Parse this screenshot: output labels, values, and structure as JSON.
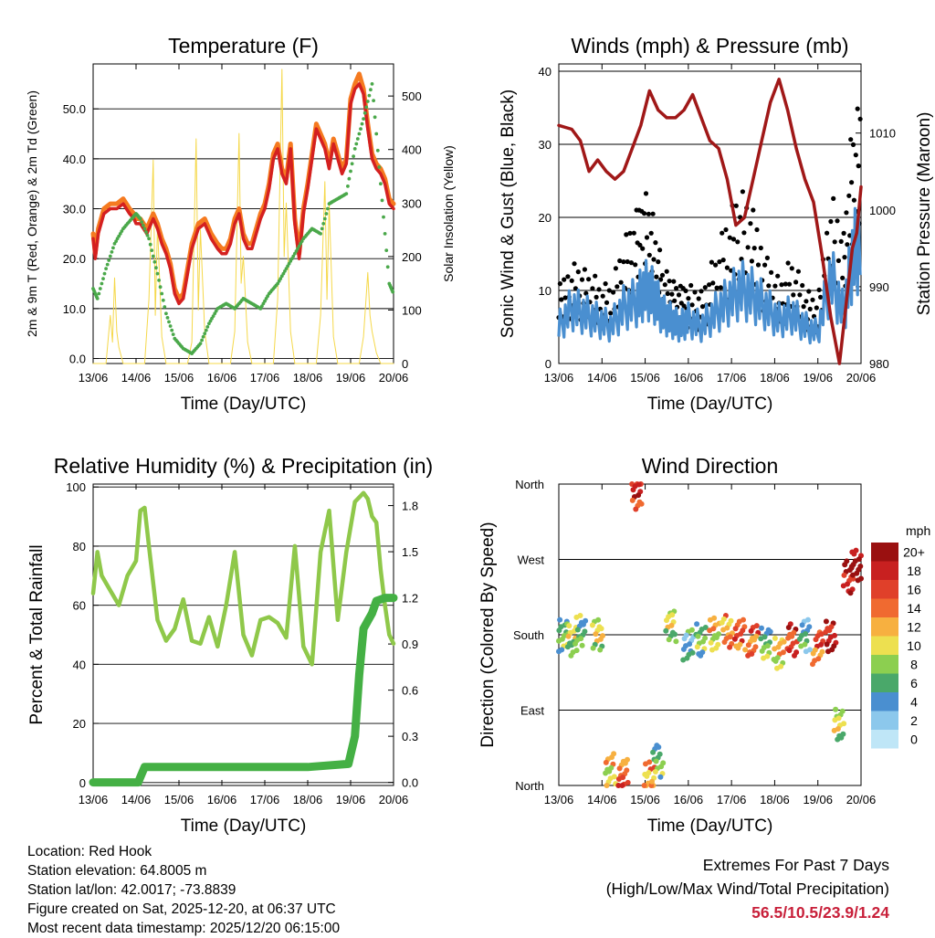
{
  "x_ticks": [
    "13/06",
    "14/06",
    "15/06",
    "16/06",
    "17/06",
    "18/06",
    "19/06",
    "20/06"
  ],
  "colors": {
    "red": "#d42020",
    "orange": "#f57a20",
    "green": "#4aa84a",
    "yellow": "#f5d84a",
    "blue": "#4a8fd0",
    "black": "#000000",
    "maroon": "#a01818",
    "rh": "#8fc84a",
    "rain": "#44b044",
    "grid": "#000000"
  },
  "chart_data": [
    {
      "id": "temperature",
      "type": "line",
      "title": "Temperature (F)",
      "xlabel": "Time (Day/UTC)",
      "ylabel": "2m & 9m T (Red, Orange) & 2m Td (Green)",
      "y2label": "Solar Insolation (Yellow)",
      "ylim": [
        -1,
        59
      ],
      "yticks": [
        "0.0",
        "10.0",
        "20.0",
        "30.0",
        "40.0",
        "50.0"
      ],
      "y2lim": [
        0,
        560
      ],
      "y2ticks": [
        "0",
        "100",
        "200",
        "300",
        "400",
        "500"
      ],
      "series": [
        {
          "name": "2m T",
          "color": "red",
          "x": [
            0,
            0.05,
            0.12,
            0.25,
            0.4,
            0.55,
            0.7,
            0.85,
            0.95,
            1.0,
            1.1,
            1.25,
            1.4,
            1.5,
            1.6,
            1.7,
            1.8,
            1.9,
            2.0,
            2.1,
            2.2,
            2.3,
            2.45,
            2.6,
            2.75,
            2.9,
            3.0,
            3.1,
            3.2,
            3.3,
            3.4,
            3.5,
            3.6,
            3.7,
            3.8,
            3.9,
            4.0,
            4.1,
            4.2,
            4.3,
            4.4,
            4.5,
            4.6,
            4.7,
            4.8,
            4.9,
            5.0,
            5.1,
            5.2,
            5.3,
            5.4,
            5.5,
            5.6,
            5.7,
            5.8,
            5.9,
            6.0,
            6.1,
            6.2,
            6.3,
            6.4,
            6.5,
            6.6,
            6.7,
            6.8,
            6.9,
            7.0
          ],
          "y": [
            24,
            20,
            25,
            29,
            30,
            30,
            31,
            29,
            28,
            27,
            27,
            25,
            28,
            26,
            23,
            21,
            18,
            13,
            11,
            12,
            17,
            22,
            26,
            27,
            24,
            22,
            21,
            21,
            23,
            27,
            29,
            24,
            22,
            22,
            25,
            28,
            30,
            34,
            40,
            42,
            37,
            35,
            42,
            27,
            20,
            29,
            34,
            40,
            46,
            44,
            42,
            38,
            43,
            40,
            37,
            39,
            51,
            54,
            55,
            53,
            46,
            40,
            38,
            37,
            35,
            31,
            30
          ]
        },
        {
          "name": "9m T",
          "color": "orange",
          "x": [
            0,
            0.05,
            0.12,
            0.25,
            0.4,
            0.55,
            0.7,
            0.85,
            0.95,
            1.0,
            1.1,
            1.25,
            1.4,
            1.5,
            1.6,
            1.7,
            1.8,
            1.9,
            2.0,
            2.1,
            2.2,
            2.3,
            2.45,
            2.6,
            2.75,
            2.9,
            3.0,
            3.1,
            3.2,
            3.3,
            3.4,
            3.5,
            3.6,
            3.7,
            3.8,
            3.9,
            4.0,
            4.1,
            4.2,
            4.3,
            4.4,
            4.5,
            4.6,
            4.7,
            4.8,
            4.9,
            5.0,
            5.1,
            5.2,
            5.3,
            5.4,
            5.5,
            5.6,
            5.7,
            5.8,
            5.9,
            6.0,
            6.1,
            6.2,
            6.3,
            6.4,
            6.5,
            6.6,
            6.7,
            6.8,
            6.9,
            7.0
          ],
          "y": [
            25,
            21,
            26,
            30,
            31,
            31,
            32,
            30,
            29,
            28,
            28,
            26,
            29,
            27,
            24,
            22,
            19,
            14,
            12,
            13,
            18,
            23,
            27,
            28,
            25,
            23,
            22,
            22,
            24,
            28,
            30,
            25,
            23,
            23,
            26,
            29,
            31,
            35,
            41,
            43,
            38,
            36,
            43,
            28,
            21,
            30,
            35,
            41,
            47,
            45,
            43,
            39,
            44,
            41,
            38,
            40,
            52,
            55,
            57,
            54,
            47,
            41,
            39,
            38,
            36,
            32,
            31
          ]
        },
        {
          "name": "2m Td",
          "color": "green",
          "x": [
            0,
            0.1,
            0.3,
            0.5,
            0.7,
            0.9,
            1.0,
            1.1,
            1.3,
            1.5,
            1.7,
            1.9,
            2.1,
            2.3,
            2.5,
            2.7,
            2.9,
            3.1,
            3.3,
            3.5,
            3.7,
            3.9,
            4.1,
            4.3,
            4.5,
            4.7,
            4.9,
            5.1,
            5.3,
            5.5,
            5.7,
            5.9,
            6.1,
            6.3,
            6.5,
            6.7,
            6.9,
            7.0
          ],
          "y": [
            14,
            12,
            18,
            23,
            26,
            28,
            29,
            28,
            24,
            17,
            9,
            4,
            2,
            1,
            3,
            7,
            10,
            11,
            10,
            12,
            11,
            10,
            13,
            15,
            18,
            21,
            24,
            26,
            25,
            31,
            32,
            33,
            42,
            48,
            55,
            35,
            15,
            13
          ]
        },
        {
          "name": "Solar Insolation",
          "color": "yellow",
          "axis": "y2",
          "x": [
            0,
            0.3,
            0.4,
            0.45,
            0.5,
            0.55,
            0.6,
            0.7,
            1.2,
            1.3,
            1.4,
            1.45,
            1.5,
            1.6,
            1.7,
            2.2,
            2.3,
            2.4,
            2.45,
            2.5,
            2.6,
            2.7,
            3.2,
            3.3,
            3.4,
            3.45,
            3.5,
            3.6,
            3.7,
            4.2,
            4.3,
            4.4,
            4.45,
            4.5,
            4.6,
            4.7,
            5.2,
            5.3,
            5.4,
            5.45,
            5.5,
            5.6,
            5.7,
            6.2,
            6.3,
            6.4,
            6.45,
            6.5,
            6.6,
            6.7,
            7.0
          ],
          "y": [
            0,
            0,
            90,
            40,
            160,
            60,
            30,
            0,
            0,
            120,
            380,
            90,
            260,
            50,
            0,
            0,
            40,
            420,
            100,
            250,
            60,
            0,
            0,
            60,
            430,
            150,
            200,
            40,
            0,
            0,
            120,
            550,
            200,
            300,
            60,
            0,
            0,
            90,
            340,
            120,
            300,
            50,
            0,
            0,
            50,
            170,
            90,
            60,
            20,
            0,
            0
          ]
        }
      ]
    },
    {
      "id": "winds",
      "type": "scatter",
      "title": "Winds (mph) & Pressure (mb)",
      "xlabel": "Time (Day/UTC)",
      "ylabel": "Sonic Wind & Gust (Blue, Black)",
      "y2label": "Station Pressure (Maroon)",
      "ylim": [
        0,
        41
      ],
      "yticks": [
        "0",
        "10",
        "20",
        "30",
        "40"
      ],
      "y2lim": [
        980,
        1019
      ],
      "y2ticks": [
        "980",
        "990",
        "1000",
        "1010"
      ],
      "series": [
        {
          "name": "Pressure",
          "color": "maroon",
          "axis": "y2",
          "x": [
            0,
            0.3,
            0.5,
            0.7,
            0.9,
            1.1,
            1.3,
            1.5,
            1.7,
            1.9,
            2.1,
            2.3,
            2.5,
            2.7,
            2.9,
            3.1,
            3.3,
            3.5,
            3.7,
            3.9,
            4.1,
            4.3,
            4.5,
            4.7,
            4.9,
            5.1,
            5.3,
            5.5,
            5.7,
            5.9,
            6.1,
            6.3,
            6.5,
            6.6,
            6.7,
            6.8,
            6.9,
            7.0
          ],
          "y": [
            1011,
            1010.5,
            1009,
            1005,
            1006.5,
            1005,
            1004,
            1005,
            1008,
            1011,
            1015.5,
            1013,
            1012,
            1012,
            1013,
            1015,
            1012,
            1009,
            1008,
            1004,
            998,
            999,
            1004,
            1009,
            1014,
            1017,
            1013,
            1008,
            1004,
            1001,
            994,
            986,
            980,
            985,
            990,
            995,
            997,
            1003
          ]
        },
        {
          "name": "Wind",
          "color": "blue",
          "x": [
            0,
            0.3,
            0.6,
            0.9,
            1.2,
            1.5,
            1.8,
            2.0,
            2.2,
            2.4,
            2.6,
            2.8,
            3.0,
            3.3,
            3.6,
            3.9,
            4.2,
            4.5,
            4.8,
            5.1,
            5.4,
            5.7,
            6.0,
            6.3,
            6.6,
            6.8,
            7.0
          ],
          "y": [
            6,
            9,
            8,
            7,
            6,
            9,
            10,
            12,
            11,
            8,
            7,
            6,
            7,
            6,
            8,
            10,
            12,
            11,
            9,
            7,
            8,
            6,
            5,
            14,
            8,
            17,
            20
          ]
        },
        {
          "name": "Gust",
          "color": "black",
          "x": [
            0,
            0.3,
            0.6,
            0.9,
            1.2,
            1.5,
            1.8,
            2.0,
            2.2,
            2.4,
            2.6,
            2.8,
            3.0,
            3.3,
            3.6,
            3.9,
            4.2,
            4.5,
            4.8,
            5.1,
            5.4,
            5.7,
            6.0,
            6.3,
            6.6,
            6.8,
            7.0
          ],
          "y": [
            10,
            14,
            13,
            11,
            10,
            16,
            20,
            24,
            19,
            13,
            11,
            10,
            11,
            10,
            14,
            19,
            23,
            20,
            15,
            11,
            14,
            10,
            8,
            24,
            18,
            32,
            34
          ]
        }
      ]
    },
    {
      "id": "humidity",
      "type": "line",
      "title": "Relative Humidity (%) & Precipitation (in)",
      "xlabel": "Time (Day/UTC)",
      "ylabel": "Percent & Total Rainfall",
      "ylim": [
        -1,
        101
      ],
      "yticks": [
        "0",
        "20",
        "40",
        "60",
        "80",
        "100"
      ],
      "y2lim": [
        -0.02,
        1.94
      ],
      "y2ticks": [
        "0.0",
        "0.3",
        "0.6",
        "0.9",
        "1.2",
        "1.5",
        "1.8"
      ],
      "series": [
        {
          "name": "Relative Humidity",
          "color": "rh",
          "x": [
            0,
            0.1,
            0.2,
            0.4,
            0.6,
            0.8,
            1.0,
            1.1,
            1.2,
            1.3,
            1.5,
            1.7,
            1.9,
            2.1,
            2.3,
            2.5,
            2.7,
            2.9,
            3.1,
            3.3,
            3.5,
            3.7,
            3.9,
            4.1,
            4.3,
            4.5,
            4.7,
            4.9,
            5.1,
            5.3,
            5.5,
            5.7,
            5.9,
            6.1,
            6.3,
            6.4,
            6.5,
            6.6,
            6.7,
            6.8,
            6.9,
            7.0
          ],
          "y": [
            64,
            78,
            70,
            65,
            60,
            70,
            75,
            92,
            93,
            80,
            55,
            48,
            52,
            62,
            48,
            47,
            56,
            46,
            60,
            78,
            50,
            43,
            55,
            56,
            54,
            49,
            80,
            46,
            40,
            78,
            92,
            55,
            78,
            95,
            98,
            96,
            90,
            88,
            72,
            60,
            50,
            47
          ]
        },
        {
          "name": "Total Rainfall",
          "color": "rain",
          "axis": "y2",
          "x": [
            0,
            1.05,
            1.2,
            1.4,
            2,
            3,
            4,
            5,
            5.95,
            6.1,
            6.2,
            6.3,
            6.4,
            6.5,
            6.6,
            6.7,
            6.8,
            7.0
          ],
          "y": [
            0,
            0,
            0.1,
            0.1,
            0.1,
            0.1,
            0.1,
            0.1,
            0.12,
            0.3,
            0.7,
            1.0,
            1.05,
            1.1,
            1.18,
            1.19,
            1.2,
            1.2
          ]
        }
      ]
    },
    {
      "id": "direction",
      "type": "scatter",
      "title": "Wind Direction",
      "xlabel": "Time (Day/UTC)",
      "ylabel": "Direction (Colored By Speed)",
      "ylim": [
        0,
        360
      ],
      "yticks": [
        "North",
        "East",
        "South",
        "West",
        "North"
      ],
      "legend": {
        "unit": "mph",
        "labels": [
          "20+",
          "18",
          "16",
          "14",
          "12",
          "10",
          "8",
          "6",
          "4",
          "2",
          "0"
        ]
      },
      "series": [
        {
          "name": "Direction",
          "x": [
            0.1,
            0.3,
            0.5,
            0.9,
            1.2,
            1.5,
            1.8,
            2.1,
            2.3,
            2.6,
            3.0,
            3.3,
            3.6,
            3.9,
            4.2,
            4.5,
            4.8,
            5.1,
            5.4,
            5.7,
            6.0,
            6.3,
            6.5,
            6.7,
            6.9
          ],
          "y": [
            180,
            175,
            185,
            182,
            20,
            15,
            350,
            10,
            30,
            190,
            170,
            175,
            182,
            185,
            180,
            175,
            170,
            160,
            175,
            180,
            165,
            178,
            75,
            250,
            265
          ],
          "speed": [
            6,
            8,
            6,
            9,
            10,
            14,
            16,
            12,
            6,
            8,
            4,
            6,
            10,
            12,
            14,
            14,
            6,
            10,
            16,
            4,
            14,
            18,
            8,
            18,
            20
          ]
        }
      ]
    }
  ],
  "info": {
    "location": "Location: Red Hook",
    "elevation": "Station elevation: 64.8005 m",
    "latlon": "Station lat/lon: 42.0017; -73.8839",
    "created": "Figure created on Sat, 2025-12-20, at 06:37 UTC",
    "recent": "Most recent data timestamp: 2025/12/20 06:15:00"
  },
  "extremes": {
    "title": "Extremes For Past 7 Days",
    "subtitle": "(High/Low/Max Wind/Total Precipitation)",
    "values": "56.5/10.5/23.9/1.24"
  }
}
